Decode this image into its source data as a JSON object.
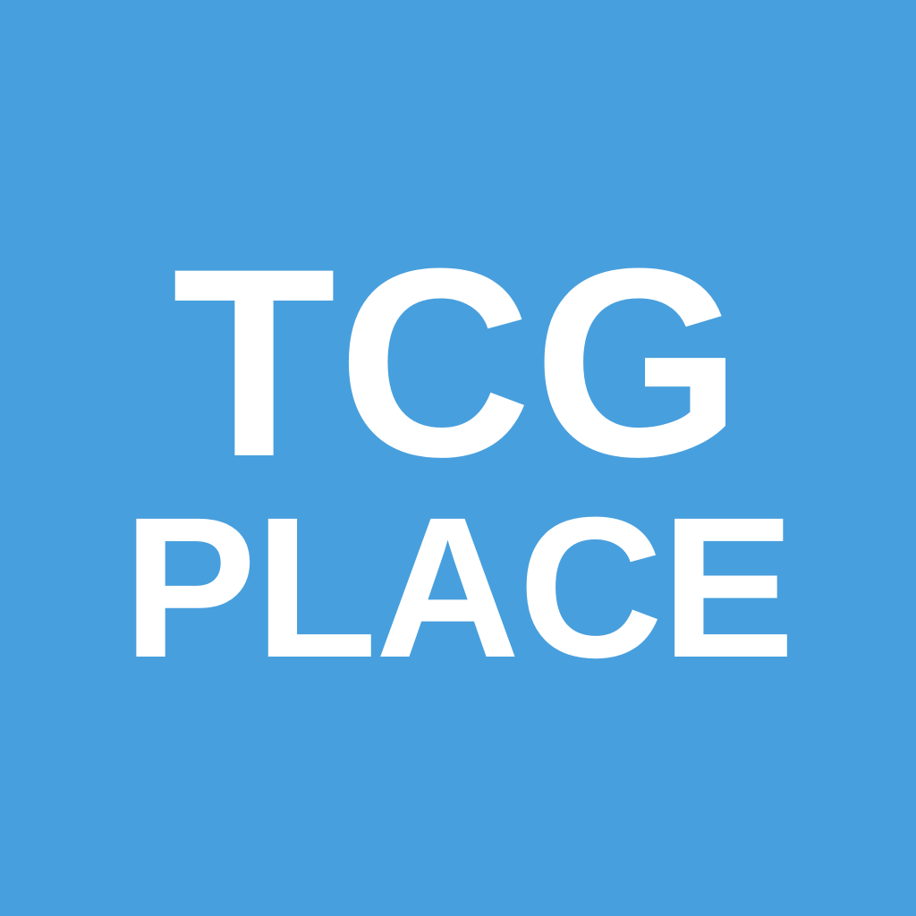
{
  "logo": {
    "line_1": "TCG",
    "line_2": "PLACE",
    "background_color": "#489fdd",
    "text_color": "#ffffff"
  }
}
